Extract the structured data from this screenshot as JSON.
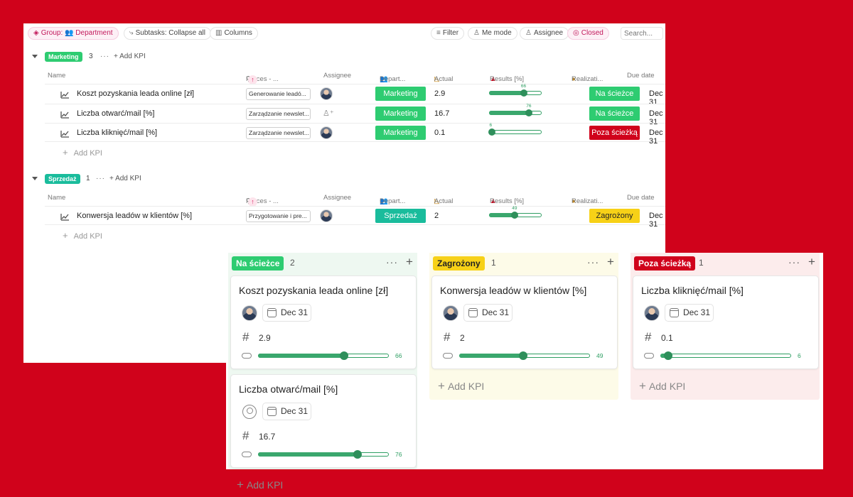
{
  "toolbar": {
    "group_label": "Group:",
    "group_value": "Department",
    "subtasks_label": "Subtasks: Collapse all",
    "columns_label": "Columns",
    "filter_label": "Filter",
    "me_mode_label": "Me mode",
    "assignee_label": "Assignee",
    "closed_label": "Closed",
    "search_placeholder": "Search..."
  },
  "columns": {
    "name": "Name",
    "process": "Proces - ...",
    "assignee": "Assignee",
    "department": "Depart...",
    "actual": "Actual",
    "results": "Results [%]",
    "realization": "Realizati...",
    "due": "Due date"
  },
  "colors": {
    "marketing": "#2ecc71",
    "sprzedaz": "#1abc9c",
    "on_track": "#2ecc71",
    "at_risk": "#f7d117",
    "off_track": "#d0021b"
  },
  "groups": [
    {
      "name": "Marketing",
      "count": "3",
      "dots": "···",
      "add_label": "+ Add KPI",
      "add_row_label": "Add KPI",
      "rows": [
        {
          "name": "Koszt pozyskania leada online [zł]",
          "process": "Generowanie leadó...",
          "assignee": "avatar",
          "department": "Marketing",
          "actual": "2.9",
          "result": 66,
          "result_label": "66",
          "status": "Na ścieżce",
          "status_kind": "on_track",
          "due": "Dec 31"
        },
        {
          "name": "Liczba otwarć/mail [%]",
          "process": "Zarządzanie newslet...",
          "assignee": "none",
          "department": "Marketing",
          "actual": "16.7",
          "result": 76,
          "result_label": "76",
          "status": "Na ścieżce",
          "status_kind": "on_track",
          "due": "Dec 31"
        },
        {
          "name": "Liczba kliknięć/mail [%]",
          "process": "Zarządzanie newslet...",
          "assignee": "avatar",
          "department": "Marketing",
          "actual": "0.1",
          "result": 6,
          "result_label": "6",
          "status": "Poza ścieżką",
          "status_kind": "off_track",
          "due": "Dec 31"
        }
      ]
    },
    {
      "name": "Sprzedaż",
      "count": "1",
      "dots": "···",
      "add_label": "+ Add KPI",
      "add_row_label": "Add KPI",
      "rows": [
        {
          "name": "Konwersja leadów w klientów [%]",
          "process": "Przygotowanie i pre...",
          "assignee": "avatar",
          "department": "Sprzedaż",
          "actual": "2",
          "result": 49,
          "result_label": "49",
          "status": "Zagrożony",
          "status_kind": "at_risk",
          "due": "Dec 31"
        }
      ]
    }
  ],
  "board": [
    {
      "status": "Na ścieżce",
      "count": "2",
      "cards": [
        {
          "title": "Koszt pozyskania leada online [zł]",
          "assignee": "avatar",
          "due": "Dec 31",
          "value": "2.9",
          "progress": 66,
          "progress_label": "66"
        },
        {
          "title": "Liczba otwarć/mail [%]",
          "assignee": "none",
          "due": "Dec 31",
          "value": "16.7",
          "progress": 76,
          "progress_label": "76"
        }
      ],
      "add_label": "Add KPI"
    },
    {
      "status": "Zagrożony",
      "count": "1",
      "cards": [
        {
          "title": "Konwersja leadów w klientów [%]",
          "assignee": "avatar",
          "due": "Dec 31",
          "value": "2",
          "progress": 49,
          "progress_label": "49"
        }
      ],
      "add_label": "Add KPI"
    },
    {
      "status": "Poza ścieżką",
      "count": "1",
      "cards": [
        {
          "title": "Liczba kliknięć/mail [%]",
          "assignee": "avatar",
          "due": "Dec 31",
          "value": "0.1",
          "progress": 6,
          "progress_label": "6"
        }
      ],
      "add_label": "Add KPI"
    }
  ]
}
